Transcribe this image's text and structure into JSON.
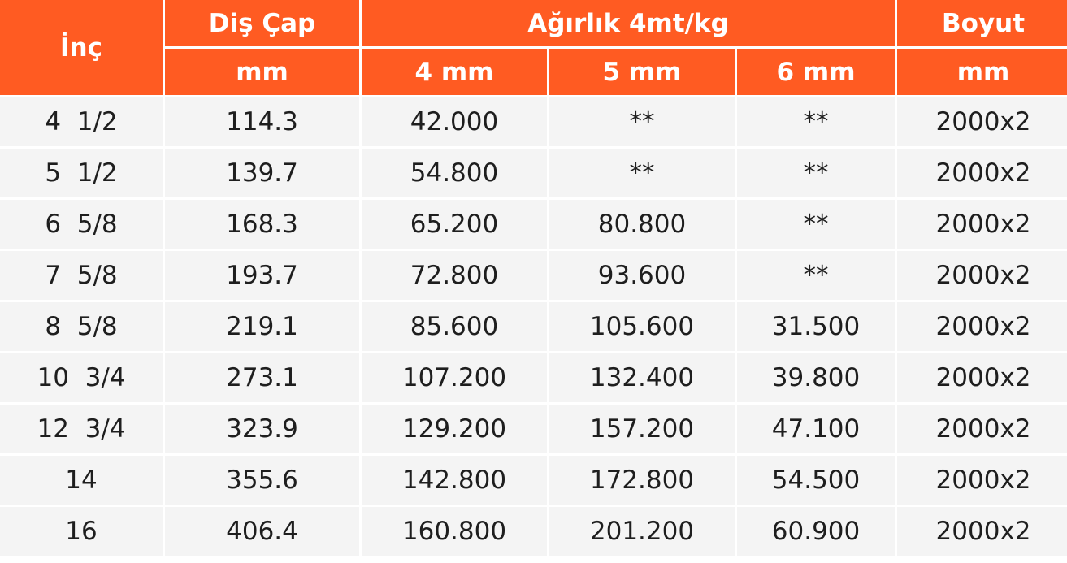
{
  "header": {
    "inc": "İnç",
    "dis_cap": "Diş Çap",
    "agirlik": "Ağırlık 4mt/kg",
    "boyut": "Boyut",
    "sub": [
      "mm",
      "4 mm",
      "5 mm",
      "6 mm",
      "mm"
    ]
  },
  "rows": [
    [
      "4  1/2",
      "114.3",
      "42.000",
      "**",
      "**",
      "2000x2"
    ],
    [
      "5  1/2",
      "139.7",
      "54.800",
      "**",
      "**",
      "2000x2"
    ],
    [
      "6  5/8",
      "168.3",
      "65.200",
      "80.800",
      "**",
      "2000x2"
    ],
    [
      "7  5/8",
      "193.7",
      "72.800",
      "93.600",
      "**",
      "2000x2"
    ],
    [
      "8  5/8",
      "219.1",
      "85.600",
      "105.600",
      "31.500",
      "2000x2"
    ],
    [
      "10  3/4",
      "273.1",
      "107.200",
      "132.400",
      "39.800",
      "2000x2"
    ],
    [
      "12  3/4",
      "323.9",
      "129.200",
      "157.200",
      "47.100",
      "2000x2"
    ],
    [
      "14",
      "355.6",
      "142.800",
      "172.800",
      "54.500",
      "2000x2"
    ],
    [
      "16",
      "406.4",
      "160.800",
      "201.200",
      "60.900",
      "2000x2"
    ]
  ]
}
